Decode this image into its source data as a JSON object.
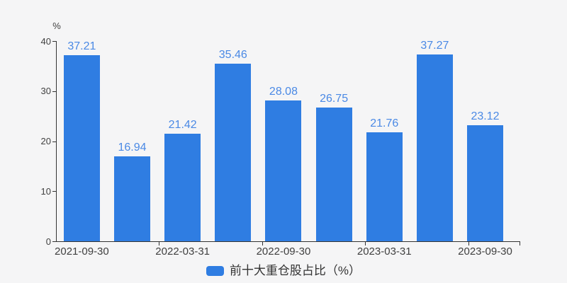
{
  "chart": {
    "y_axis_name": "%",
    "legend": {
      "label": "前十大重仓股占比（%）"
    },
    "colors": {
      "background": "#f5f5f6",
      "bar": "#2f7de2",
      "value_label": "#4a89e5",
      "axis": "#333333",
      "axis_text": "#404040"
    }
  },
  "chart_data": {
    "type": "bar",
    "title": "",
    "series": [
      {
        "name": "前十大重仓股占比（%）",
        "values": [
          37.21,
          16.94,
          21.42,
          35.46,
          28.08,
          26.75,
          21.76,
          37.27,
          23.12
        ]
      }
    ],
    "value_labels": [
      "37.21",
      "16.94",
      "21.42",
      "35.46",
      "28.08",
      "26.75",
      "21.76",
      "37.27",
      "23.12"
    ],
    "x_tick_labels": [
      "2021-09-30",
      "2022-03-31",
      "2022-09-30",
      "2023-03-31",
      "2023-09-30"
    ],
    "x_labeled_bar_indices": [
      0,
      2,
      4,
      6,
      8
    ],
    "xlabel": "",
    "ylabel": "%",
    "ylim": [
      0,
      40
    ],
    "y_ticks": [
      0,
      10,
      20,
      30,
      40
    ],
    "grid": false,
    "legend_position": "bottom"
  }
}
